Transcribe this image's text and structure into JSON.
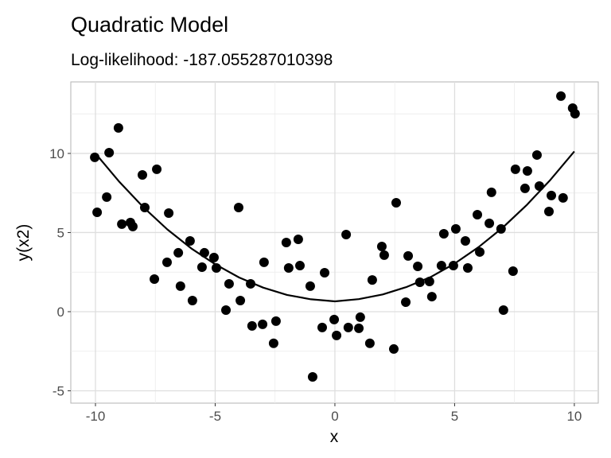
{
  "chart_data": {
    "type": "scatter",
    "title": "Quadratic Model",
    "subtitle": "Log-likelihood: -187.055287010398",
    "xlabel": "x",
    "ylabel": "y(x2)",
    "xlim": [
      -11.03,
      11.0
    ],
    "ylim": [
      -5.78,
      14.52
    ],
    "xticks": [
      -10,
      -5,
      0,
      5,
      10
    ],
    "yticks": [
      -5,
      0,
      5,
      10
    ],
    "grid": true,
    "point_color": "#000000",
    "points": [
      [
        -10.03,
        9.75
      ],
      [
        -9.93,
        6.28
      ],
      [
        -9.53,
        7.24
      ],
      [
        -9.43,
        10.05
      ],
      [
        -9.04,
        11.61
      ],
      [
        -8.9,
        5.53
      ],
      [
        -8.54,
        5.63
      ],
      [
        -8.44,
        5.38
      ],
      [
        -8.04,
        8.64
      ],
      [
        -7.94,
        6.58
      ],
      [
        -7.44,
        9.0
      ],
      [
        -7.54,
        2.06
      ],
      [
        -7.01,
        3.12
      ],
      [
        -6.94,
        6.23
      ],
      [
        -6.54,
        3.72
      ],
      [
        -6.45,
        1.61
      ],
      [
        -6.05,
        4.47
      ],
      [
        -5.95,
        0.7
      ],
      [
        -5.55,
        2.81
      ],
      [
        -5.45,
        3.72
      ],
      [
        -5.05,
        3.42
      ],
      [
        -4.95,
        2.76
      ],
      [
        -4.55,
        0.1
      ],
      [
        -4.42,
        1.76
      ],
      [
        -4.02,
        6.58
      ],
      [
        -3.95,
        0.7
      ],
      [
        -3.52,
        1.76
      ],
      [
        -3.46,
        -0.9
      ],
      [
        -3.02,
        -0.8
      ],
      [
        -2.96,
        3.12
      ],
      [
        -2.56,
        -2.0
      ],
      [
        -2.46,
        -0.6
      ],
      [
        -2.03,
        4.37
      ],
      [
        -1.93,
        2.76
      ],
      [
        -1.53,
        4.57
      ],
      [
        -1.46,
        2.91
      ],
      [
        -1.03,
        1.61
      ],
      [
        -0.93,
        -4.12
      ],
      [
        -0.53,
        -1.0
      ],
      [
        -0.43,
        2.46
      ],
      [
        -0.03,
        -0.5
      ],
      [
        0.07,
        -1.5
      ],
      [
        0.47,
        4.87
      ],
      [
        0.56,
        -1.0
      ],
      [
        1.0,
        -1.05
      ],
      [
        1.06,
        -0.35
      ],
      [
        1.46,
        -2.0
      ],
      [
        1.56,
        2.0
      ],
      [
        1.96,
        4.12
      ],
      [
        2.06,
        3.57
      ],
      [
        2.46,
        -2.36
      ],
      [
        2.56,
        6.88
      ],
      [
        2.96,
        0.6
      ],
      [
        3.06,
        3.52
      ],
      [
        3.46,
        2.86
      ],
      [
        3.55,
        1.86
      ],
      [
        3.95,
        1.91
      ],
      [
        4.05,
        0.95
      ],
      [
        4.45,
        2.91
      ],
      [
        4.55,
        4.92
      ],
      [
        4.95,
        2.91
      ],
      [
        5.05,
        5.23
      ],
      [
        5.45,
        4.47
      ],
      [
        5.55,
        2.76
      ],
      [
        5.95,
        6.13
      ],
      [
        6.05,
        3.77
      ],
      [
        6.45,
        5.58
      ],
      [
        6.54,
        7.54
      ],
      [
        6.94,
        5.23
      ],
      [
        7.04,
        0.1
      ],
      [
        7.44,
        2.56
      ],
      [
        7.54,
        9.0
      ],
      [
        7.94,
        7.79
      ],
      [
        8.04,
        8.89
      ],
      [
        8.44,
        9.9
      ],
      [
        8.54,
        7.94
      ],
      [
        8.94,
        6.33
      ],
      [
        9.04,
        7.34
      ],
      [
        9.44,
        13.62
      ],
      [
        9.53,
        7.19
      ],
      [
        9.93,
        12.86
      ],
      [
        10.03,
        12.51
      ]
    ],
    "fit_line": [
      [
        -10,
        10.0
      ],
      [
        -9,
        8.2
      ],
      [
        -8,
        6.6
      ],
      [
        -7,
        5.2
      ],
      [
        -6,
        4.0
      ],
      [
        -5,
        3.0
      ],
      [
        -4,
        2.16
      ],
      [
        -3,
        1.52
      ],
      [
        -2,
        1.06
      ],
      [
        -1,
        0.78
      ],
      [
        0,
        0.65
      ],
      [
        1,
        0.79
      ],
      [
        2,
        1.09
      ],
      [
        3,
        1.56
      ],
      [
        4,
        2.19
      ],
      [
        5,
        3.04
      ],
      [
        6,
        4.08
      ],
      [
        7,
        5.3
      ],
      [
        8,
        6.72
      ],
      [
        9,
        8.33
      ],
      [
        10,
        10.13
      ]
    ]
  }
}
